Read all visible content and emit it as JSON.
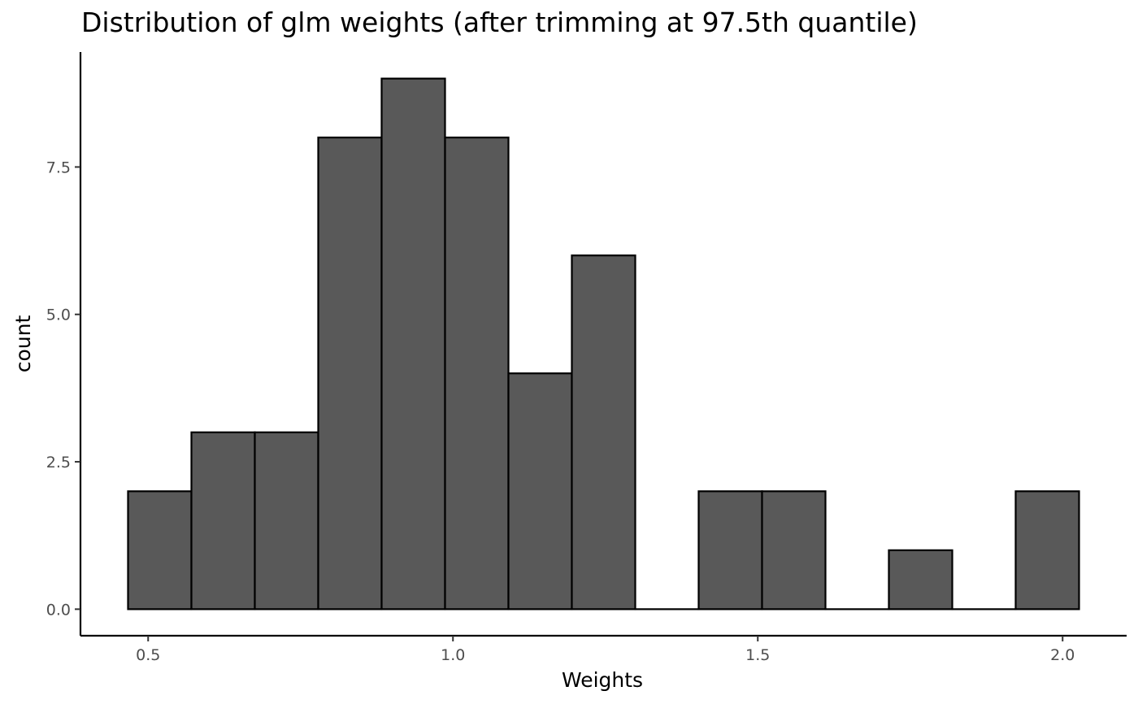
{
  "chart_data": {
    "type": "bar",
    "title": "Distribution of glm weights (after trimming at 97.5th quantile)",
    "xlabel": "Weights",
    "ylabel": "count",
    "bins": [
      {
        "x0": 0.467,
        "x1": 0.571,
        "count": 2
      },
      {
        "x0": 0.571,
        "x1": 0.675,
        "count": 3
      },
      {
        "x0": 0.675,
        "x1": 0.779,
        "count": 3
      },
      {
        "x0": 0.779,
        "x1": 0.883,
        "count": 8
      },
      {
        "x0": 0.883,
        "x1": 0.987,
        "count": 9
      },
      {
        "x0": 0.987,
        "x1": 1.091,
        "count": 8
      },
      {
        "x0": 1.091,
        "x1": 1.195,
        "count": 4
      },
      {
        "x0": 1.195,
        "x1": 1.299,
        "count": 6
      },
      {
        "x0": 1.299,
        "x1": 1.403,
        "count": 0
      },
      {
        "x0": 1.403,
        "x1": 1.507,
        "count": 2
      },
      {
        "x0": 1.507,
        "x1": 1.611,
        "count": 2
      },
      {
        "x0": 1.611,
        "x1": 1.715,
        "count": 0
      },
      {
        "x0": 1.715,
        "x1": 1.819,
        "count": 1
      },
      {
        "x0": 1.819,
        "x1": 1.923,
        "count": 0
      },
      {
        "x0": 1.923,
        "x1": 2.027,
        "count": 2
      }
    ],
    "xticks": [
      {
        "value": 0.5,
        "label": "0.5"
      },
      {
        "value": 1.0,
        "label": "1.0"
      },
      {
        "value": 1.5,
        "label": "1.5"
      },
      {
        "value": 2.0,
        "label": "2.0"
      }
    ],
    "yticks": [
      {
        "value": 0,
        "label": "0.0"
      },
      {
        "value": 2.5,
        "label": "2.5"
      },
      {
        "value": 5,
        "label": "5.0"
      },
      {
        "value": 7.5,
        "label": "7.5"
      }
    ],
    "xlim": [
      0.389,
      2.105
    ],
    "ylim": [
      -0.45,
      9.45
    ],
    "grid": false,
    "bar_fill": "#595959",
    "bar_stroke": "#000000"
  }
}
